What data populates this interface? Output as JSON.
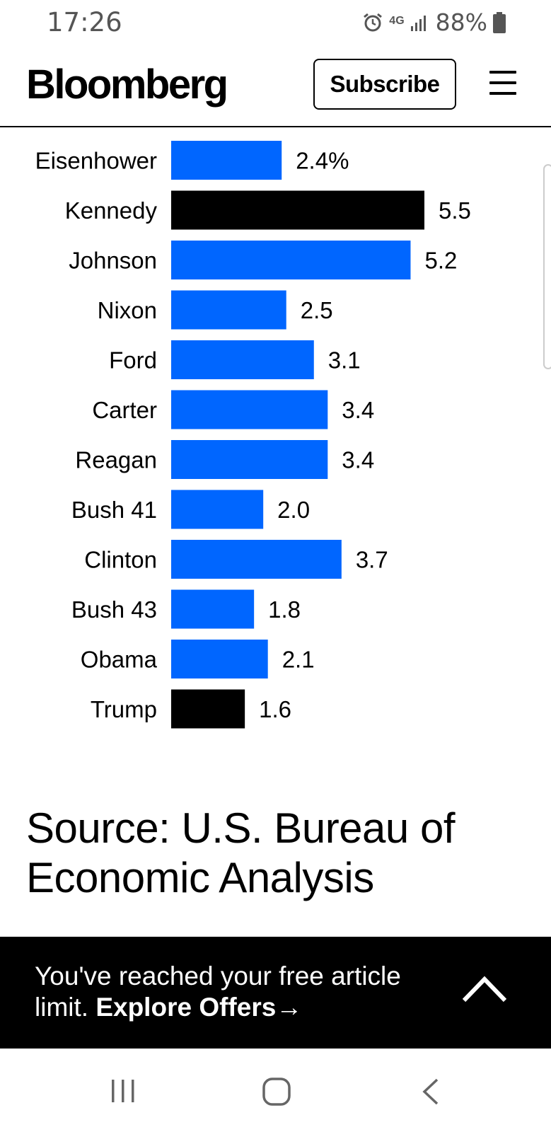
{
  "status_bar": {
    "time": "17:26",
    "network": "4G",
    "battery": "88%",
    "icons": [
      "alarm-icon",
      "network-4g-icon",
      "signal-icon",
      "battery-icon"
    ]
  },
  "header": {
    "logo": "Bloomberg",
    "subscribe_label": "Subscribe",
    "menu_icon": "hamburger-menu-icon"
  },
  "chart_data": {
    "type": "bar",
    "orientation": "horizontal",
    "categories": [
      "Eisenhower",
      "Kennedy",
      "Johnson",
      "Nixon",
      "Ford",
      "Carter",
      "Reagan",
      "Bush 41",
      "Clinton",
      "Bush 43",
      "Obama",
      "Trump"
    ],
    "values": [
      2.4,
      5.5,
      5.2,
      2.5,
      3.1,
      3.4,
      3.4,
      2.0,
      3.7,
      1.8,
      2.1,
      1.6
    ],
    "value_labels": [
      "2.4%",
      "5.5",
      "5.2",
      "2.5",
      "3.1",
      "3.4",
      "3.4",
      "2.0",
      "3.7",
      "1.8",
      "2.1",
      "1.6"
    ],
    "highlighted": [
      false,
      true,
      false,
      false,
      false,
      false,
      false,
      false,
      false,
      false,
      false,
      true
    ],
    "colors": {
      "default": "#0066FF",
      "highlight": "#000000"
    },
    "xlim": [
      0,
      5.5
    ]
  },
  "source": "Source: U.S. Bureau of Economic Analysis",
  "paywall": {
    "text": "You've reached your free article limit.",
    "link": "Explore Offers",
    "arrow": "→",
    "chevron_icon": "chevron-up-icon"
  },
  "nav_bar": {
    "icons": [
      "recent-apps-icon",
      "home-icon",
      "back-icon"
    ]
  }
}
